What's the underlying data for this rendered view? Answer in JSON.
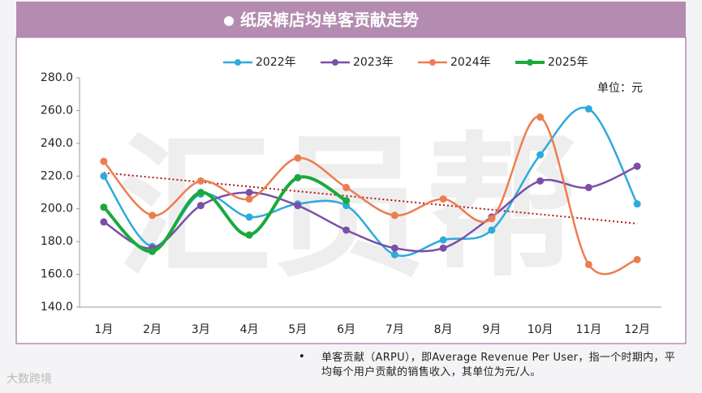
{
  "header": {
    "title": "纸尿裤店均单客贡献走势"
  },
  "chart_data": {
    "type": "line",
    "smooth": true,
    "unit": "单位：元",
    "categories": [
      "1月",
      "2月",
      "3月",
      "4月",
      "5月",
      "6月",
      "7月",
      "8月",
      "9月",
      "10月",
      "11月",
      "12月"
    ],
    "series": [
      {
        "name": "2022年",
        "color": "#2eaadc",
        "values": [
          220,
          177,
          209,
          195,
          203,
          202,
          172,
          181,
          187,
          233,
          261,
          203
        ]
      },
      {
        "name": "2023年",
        "color": "#7b4fa8",
        "values": [
          192,
          176,
          202,
          210,
          202,
          187,
          176,
          176,
          195,
          217,
          213,
          226
        ]
      },
      {
        "name": "2024年",
        "color": "#ed7d50",
        "values": [
          229,
          196,
          217,
          206,
          231,
          213,
          196,
          206,
          194,
          256,
          166,
          169
        ]
      },
      {
        "name": "2025年",
        "color": "#1aaa3c",
        "values": [
          201,
          174,
          210,
          184,
          219,
          205,
          null,
          null,
          null,
          null,
          null,
          null
        ]
      }
    ],
    "trendline": {
      "color": "#b01818",
      "start": 222,
      "end": 191
    },
    "ylim": [
      140,
      280
    ],
    "yticks": [
      {
        "value": 140,
        "label": "140.0"
      },
      {
        "value": 160,
        "label": "160.0"
      },
      {
        "value": 180,
        "label": "180.0"
      },
      {
        "value": 200,
        "label": "200.0"
      },
      {
        "value": 220,
        "label": "220.0"
      },
      {
        "value": 240,
        "label": "240.0"
      },
      {
        "value": 260,
        "label": "260.0"
      },
      {
        "value": 280,
        "label": "280.0"
      }
    ],
    "legend": "top"
  },
  "watermark": "汇员帮",
  "footnote": "单客贡献（ARPU），即Average Revenue Per User，指一个时期内，平均每个用户贡献的销售收入，其单位为元/人。",
  "brand": "大数跨境"
}
